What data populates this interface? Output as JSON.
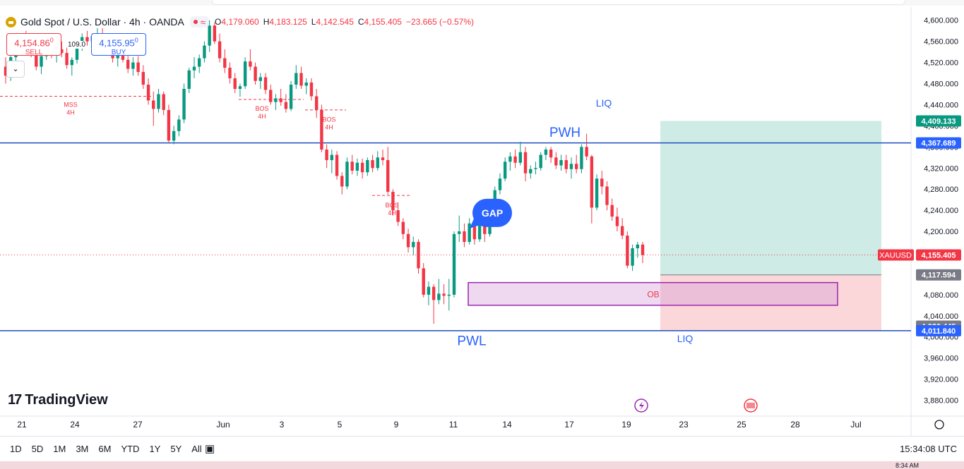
{
  "header": {
    "symbol": "Gold Spot / U.S. Dollar · 4h · OANDA",
    "ohlc": [
      {
        "k": "O",
        "v": "4,179.060"
      },
      {
        "k": "H",
        "v": "4,183.125"
      },
      {
        "k": "L",
        "v": "4,142.545"
      },
      {
        "k": "C",
        "v": "4,155.405"
      }
    ],
    "change": "−23.665 (−0.57%)"
  },
  "trade": {
    "sell_price": "4,154.86",
    "sell_sup": "0",
    "sell_label": "SELL",
    "buy_price": "4,155.95",
    "buy_sup": "0",
    "buy_label": "BUY",
    "spread": "109.0"
  },
  "brand": "TradingView",
  "timeframes": [
    "1D",
    "5D",
    "1M",
    "3M",
    "6M",
    "YTD",
    "1Y",
    "5Y",
    "All"
  ],
  "clock": "15:34:08 UTC",
  "colors": {
    "up": "#089981",
    "down": "#f23645",
    "blue": "#2962ff",
    "level": "#1e4fbf"
  },
  "chart_data": {
    "type": "candlestick",
    "ylim": [
      3850,
      4625
    ],
    "y_ticks": [
      "4,600.000",
      "4,560.000",
      "4,520.000",
      "4,480.000",
      "4,440.000",
      "4,400.000",
      "4,360.000",
      "4,320.000",
      "4,280.000",
      "4,240.000",
      "4,200.000",
      "4,160.000",
      "4,120.000",
      "4,080.000",
      "4,040.000",
      "4,000.000",
      "3,960.000",
      "3,920.000",
      "3,880.000"
    ],
    "x_ticks": [
      "21",
      "24",
      "27",
      "Jun",
      "3",
      "5",
      "9",
      "11",
      "14",
      "17",
      "19",
      "23",
      "25",
      "28",
      "Jul"
    ],
    "candles": [
      [
        4512,
        4530,
        4480,
        4495
      ],
      [
        4495,
        4540,
        4485,
        4530
      ],
      [
        4530,
        4560,
        4518,
        4548
      ],
      [
        4548,
        4572,
        4535,
        4560
      ],
      [
        4560,
        4580,
        4545,
        4552
      ],
      [
        4552,
        4568,
        4530,
        4540
      ],
      [
        4540,
        4548,
        4505,
        4512
      ],
      [
        4512,
        4540,
        4498,
        4532
      ],
      [
        4532,
        4560,
        4525,
        4552
      ],
      [
        4552,
        4565,
        4528,
        4535
      ],
      [
        4535,
        4552,
        4520,
        4545
      ],
      [
        4545,
        4560,
        4530,
        4538
      ],
      [
        4538,
        4548,
        4508,
        4515
      ],
      [
        4515,
        4530,
        4495,
        4525
      ],
      [
        4525,
        4560,
        4518,
        4555
      ],
      [
        4555,
        4575,
        4542,
        4568
      ],
      [
        4568,
        4580,
        4552,
        4560
      ],
      [
        4560,
        4575,
        4548,
        4570
      ],
      [
        4570,
        4585,
        4560,
        4575
      ],
      [
        4575,
        4585,
        4555,
        4562
      ],
      [
        4562,
        4570,
        4540,
        4548
      ],
      [
        4548,
        4555,
        4520,
        4528
      ],
      [
        4528,
        4545,
        4512,
        4538
      ],
      [
        4538,
        4550,
        4520,
        4525
      ],
      [
        4525,
        4535,
        4500,
        4508
      ],
      [
        4508,
        4530,
        4495,
        4520
      ],
      [
        4520,
        4532,
        4495,
        4502
      ],
      [
        4502,
        4515,
        4470,
        4478
      ],
      [
        4478,
        4490,
        4440,
        4448
      ],
      [
        4448,
        4465,
        4400,
        4432
      ],
      [
        4432,
        4470,
        4425,
        4460
      ],
      [
        4460,
        4465,
        4420,
        4430
      ],
      [
        4430,
        4440,
        4368,
        4372
      ],
      [
        4372,
        4400,
        4365,
        4390
      ],
      [
        4390,
        4420,
        4380,
        4412
      ],
      [
        4412,
        4480,
        4405,
        4470
      ],
      [
        4470,
        4510,
        4462,
        4505
      ],
      [
        4505,
        4530,
        4490,
        4512
      ],
      [
        4512,
        4535,
        4500,
        4528
      ],
      [
        4528,
        4560,
        4520,
        4552
      ],
      [
        4552,
        4600,
        4540,
        4590
      ],
      [
        4590,
        4596,
        4555,
        4560
      ],
      [
        4560,
        4575,
        4520,
        4528
      ],
      [
        4528,
        4545,
        4500,
        4510
      ],
      [
        4510,
        4520,
        4480,
        4490
      ],
      [
        4490,
        4500,
        4462,
        4470
      ],
      [
        4470,
        4480,
        4455,
        4475
      ],
      [
        4475,
        4530,
        4470,
        4522
      ],
      [
        4522,
        4545,
        4505,
        4512
      ],
      [
        4512,
        4520,
        4478,
        4485
      ],
      [
        4485,
        4500,
        4470,
        4492
      ],
      [
        4492,
        4500,
        4460,
        4468
      ],
      [
        4468,
        4478,
        4440,
        4445
      ],
      [
        4445,
        4460,
        4430,
        4452
      ],
      [
        4452,
        4470,
        4438,
        4445
      ],
      [
        4445,
        4460,
        4425,
        4432
      ],
      [
        4432,
        4485,
        4428,
        4478
      ],
      [
        4478,
        4515,
        4470,
        4500
      ],
      [
        4500,
        4512,
        4470,
        4476
      ],
      [
        4476,
        4490,
        4460,
        4482
      ],
      [
        4482,
        4490,
        4448,
        4456
      ],
      [
        4456,
        4470,
        4415,
        4430
      ],
      [
        4430,
        4440,
        4350,
        4355
      ],
      [
        4355,
        4365,
        4320,
        4335
      ],
      [
        4335,
        4355,
        4310,
        4345
      ],
      [
        4345,
        4352,
        4298,
        4305
      ],
      [
        4305,
        4312,
        4270,
        4285
      ],
      [
        4285,
        4340,
        4280,
        4332
      ],
      [
        4332,
        4345,
        4308,
        4315
      ],
      [
        4315,
        4338,
        4305,
        4330
      ],
      [
        4330,
        4338,
        4300,
        4312
      ],
      [
        4312,
        4340,
        4305,
        4335
      ],
      [
        4335,
        4345,
        4312,
        4320
      ],
      [
        4320,
        4352,
        4315,
        4340
      ],
      [
        4340,
        4355,
        4325,
        4335
      ],
      [
        4335,
        4360,
        4270,
        4275
      ],
      [
        4275,
        4280,
        4230,
        4240
      ],
      [
        4240,
        4255,
        4210,
        4218
      ],
      [
        4218,
        4225,
        4185,
        4195
      ],
      [
        4195,
        4205,
        4160,
        4170
      ],
      [
        4170,
        4190,
        4155,
        4180
      ],
      [
        4180,
        4185,
        4120,
        4130
      ],
      [
        4130,
        4140,
        4075,
        4080
      ],
      [
        4080,
        4105,
        4060,
        4095
      ],
      [
        4095,
        4100,
        4025,
        4070
      ],
      [
        4070,
        4110,
        4062,
        4082
      ],
      [
        4082,
        4100,
        4062,
        4078
      ],
      [
        4078,
        4110,
        4050,
        4080
      ],
      [
        4080,
        4200,
        4075,
        4195
      ],
      [
        4195,
        4230,
        4180,
        4200
      ],
      [
        4200,
        4215,
        4170,
        4180
      ],
      [
        4180,
        4225,
        4175,
        4215
      ],
      [
        4215,
        4232,
        4175,
        4185
      ],
      [
        4185,
        4230,
        4180,
        4220
      ],
      [
        4220,
        4228,
        4180,
        4195
      ],
      [
        4195,
        4230,
        4190,
        4225
      ],
      [
        4225,
        4285,
        4220,
        4278
      ],
      [
        4278,
        4310,
        4270,
        4300
      ],
      [
        4300,
        4340,
        4295,
        4332
      ],
      [
        4332,
        4350,
        4315,
        4342
      ],
      [
        4342,
        4355,
        4320,
        4330
      ],
      [
        4330,
        4370,
        4325,
        4350
      ],
      [
        4350,
        4360,
        4295,
        4310
      ],
      [
        4310,
        4325,
        4300,
        4318
      ],
      [
        4318,
        4332,
        4308,
        4320
      ],
      [
        4320,
        4350,
        4315,
        4345
      ],
      [
        4345,
        4360,
        4335,
        4355
      ],
      [
        4355,
        4360,
        4330,
        4340
      ],
      [
        4340,
        4350,
        4318,
        4325
      ],
      [
        4325,
        4345,
        4315,
        4335
      ],
      [
        4335,
        4345,
        4310,
        4318
      ],
      [
        4318,
        4340,
        4300,
        4328
      ],
      [
        4328,
        4345,
        4310,
        4318
      ],
      [
        4318,
        4365,
        4310,
        4360
      ],
      [
        4360,
        4385,
        4335,
        4342
      ],
      [
        4342,
        4345,
        4215,
        4245
      ],
      [
        4245,
        4308,
        4240,
        4300
      ],
      [
        4300,
        4315,
        4270,
        4285
      ],
      [
        4285,
        4295,
        4240,
        4250
      ],
      [
        4250,
        4262,
        4220,
        4228
      ],
      [
        4228,
        4245,
        4200,
        4210
      ],
      [
        4210,
        4225,
        4185,
        4192
      ],
      [
        4192,
        4200,
        4130,
        4135
      ],
      [
        4135,
        4175,
        4125,
        4168
      ],
      [
        4168,
        4180,
        4150,
        4175
      ],
      [
        4175,
        4180,
        4140,
        4155
      ]
    ],
    "levels": [
      {
        "label": "PWH",
        "value": 4367.689
      },
      {
        "label": "PWL",
        "value": 4011.84
      }
    ],
    "price_labels": [
      {
        "text": "4,409.133",
        "value": 4409.133,
        "color": "#089981"
      },
      {
        "text": "4,367.689",
        "value": 4367.689,
        "color": "#2962ff"
      },
      {
        "text": "4,155.405",
        "value": 4155.405,
        "color": "#f23645",
        "tag": "XAUUSD"
      },
      {
        "text": "4,117.594",
        "value": 4117.594,
        "color": "#787b86"
      },
      {
        "text": "4,020.445",
        "value": 4020.445,
        "color": "#787b86"
      },
      {
        "text": "4,011.840",
        "value": 4011.84,
        "color": "#2962ff"
      }
    ],
    "position": {
      "target": 4409.133,
      "entry": 4117.594,
      "stop": 4011.84
    },
    "order_block": {
      "label": "OB",
      "top": 4103,
      "bottom": 4060
    },
    "annotations": [
      {
        "text": "LIQ",
        "value": 4443
      },
      {
        "text": "LIQ",
        "value": 3997
      },
      {
        "text": "PWH",
        "value": 4388
      },
      {
        "text": "PWL",
        "value": 3993
      },
      {
        "text": "GAP",
        "value": 4235
      },
      {
        "text": "MSS",
        "sub": "4H",
        "value": 4440
      },
      {
        "text": "BOS",
        "sub": "4H",
        "value": 4433
      },
      {
        "text": "BOS",
        "sub": "4H",
        "value": 4412
      },
      {
        "text": "BOS",
        "sub": "4H",
        "value": 4250
      }
    ],
    "dashed_lines": [
      {
        "value": 4456
      },
      {
        "value": 4450
      },
      {
        "value": 4430
      },
      {
        "value": 4268
      }
    ]
  }
}
